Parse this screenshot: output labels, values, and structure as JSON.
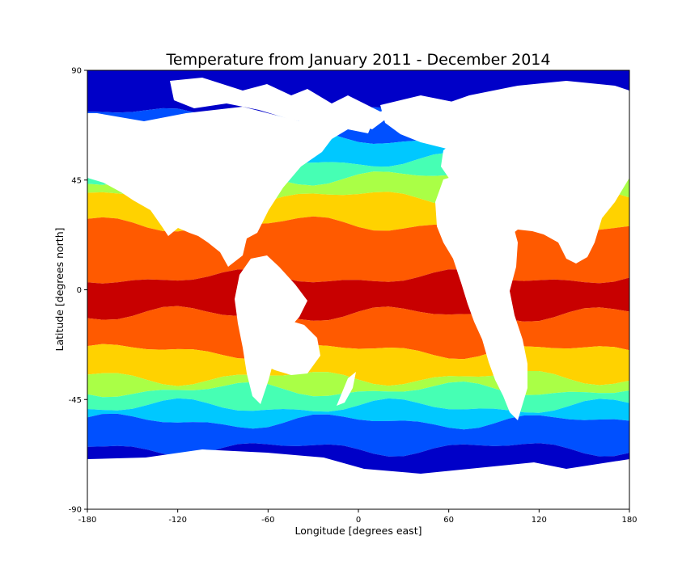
{
  "chart_data": {
    "type": "heatmap",
    "subtype": "filled-contour-map",
    "title": "Temperature from January 2011 - December 2014",
    "xlabel": "Longitude [degrees east]",
    "ylabel": "Latitude [degrees north]",
    "xlim": [
      -180,
      180
    ],
    "ylim": [
      -90,
      90
    ],
    "xticks": [
      -180,
      -120,
      -60,
      0,
      60,
      120,
      180
    ],
    "yticks": [
      -90,
      -45,
      0,
      45,
      90
    ],
    "grid": false,
    "legend": "none",
    "colormap": "jet",
    "levels": [
      {
        "color": "#0000c8"
      },
      {
        "color": "#0050ff"
      },
      {
        "color": "#00c8ff"
      },
      {
        "color": "#46ffb4"
      },
      {
        "color": "#aaff46"
      },
      {
        "color": "#ffd200"
      },
      {
        "color": "#ff5a00"
      },
      {
        "color": "#c80000"
      }
    ],
    "bands": [
      {
        "level": 0,
        "lat_from": 90,
        "lat_to": 72
      },
      {
        "level": 1,
        "lat_from": 72,
        "lat_to": 62
      },
      {
        "level": 2,
        "lat_from": 62,
        "lat_to": 53
      },
      {
        "level": 3,
        "lat_from": 53,
        "lat_to": 46
      },
      {
        "level": 4,
        "lat_from": 46,
        "lat_to": 38
      },
      {
        "level": 5,
        "lat_from": 38,
        "lat_to": 27
      },
      {
        "level": 6,
        "lat_from": 27,
        "lat_to": 5
      },
      {
        "level": 7,
        "lat_from": 5,
        "lat_to": -10
      },
      {
        "level": 6,
        "lat_from": -10,
        "lat_to": -25
      },
      {
        "level": 5,
        "lat_from": -25,
        "lat_to": -36
      },
      {
        "level": 4,
        "lat_from": -36,
        "lat_to": -41
      },
      {
        "level": 3,
        "lat_from": -41,
        "lat_to": -48
      },
      {
        "level": 2,
        "lat_from": -48,
        "lat_to": -54
      },
      {
        "level": 1,
        "lat_from": -54,
        "lat_to": -65
      },
      {
        "level": 0,
        "lat_from": -65,
        "lat_to": -78
      }
    ]
  }
}
